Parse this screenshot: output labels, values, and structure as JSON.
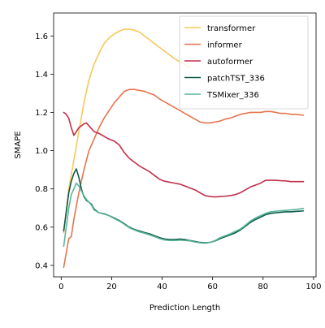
{
  "chart_data": {
    "type": "line",
    "title": "",
    "xlabel": "Prediction Length",
    "ylabel": "SMAPE",
    "xlim": [
      -3,
      101
    ],
    "ylim": [
      0.34,
      1.72
    ],
    "xticks": [
      0,
      20,
      40,
      60,
      80,
      100
    ],
    "yticks": [
      0.4,
      0.6,
      0.8,
      1.0,
      1.2,
      1.4,
      1.6
    ],
    "ytick_format": "fixed1",
    "grid": false,
    "legend_position": "top-right",
    "series": [
      {
        "name": "transformer",
        "color": "#f7c85a",
        "x": [
          1,
          3,
          5,
          7,
          9,
          11,
          13,
          15,
          17,
          19,
          21,
          23,
          25,
          27,
          29,
          31,
          33,
          35,
          37,
          39,
          41,
          43,
          45,
          47,
          49,
          51
        ],
        "y": [
          0.57,
          0.8,
          0.95,
          1.1,
          1.25,
          1.37,
          1.45,
          1.51,
          1.56,
          1.59,
          1.61,
          1.625,
          1.635,
          1.635,
          1.63,
          1.62,
          1.6,
          1.58,
          1.56,
          1.54,
          1.52,
          1.5,
          1.48,
          1.465,
          1.45,
          1.435
        ]
      },
      {
        "name": "informer",
        "color": "#e8734f",
        "x": [
          1,
          3,
          4,
          5,
          7,
          9,
          11,
          13,
          15,
          17,
          19,
          21,
          23,
          25,
          27,
          29,
          31,
          33,
          35,
          37,
          39,
          41,
          43,
          45,
          47,
          49,
          51,
          53,
          55,
          57,
          59,
          61,
          63,
          65,
          67,
          69,
          71,
          73,
          75,
          77,
          79,
          81,
          83,
          85,
          87,
          89,
          91,
          93,
          96
        ],
        "y": [
          0.39,
          0.54,
          0.55,
          0.64,
          0.78,
          0.9,
          1.0,
          1.06,
          1.12,
          1.17,
          1.21,
          1.25,
          1.28,
          1.31,
          1.32,
          1.32,
          1.315,
          1.31,
          1.3,
          1.29,
          1.27,
          1.255,
          1.24,
          1.225,
          1.21,
          1.195,
          1.18,
          1.165,
          1.15,
          1.145,
          1.145,
          1.15,
          1.155,
          1.165,
          1.17,
          1.18,
          1.19,
          1.195,
          1.2,
          1.2,
          1.2,
          1.205,
          1.205,
          1.2,
          1.195,
          1.195,
          1.19,
          1.19,
          1.185
        ]
      },
      {
        "name": "autoformer",
        "color": "#c22f4a",
        "x": [
          1,
          2,
          3,
          4,
          5,
          6,
          7,
          8,
          9,
          10,
          11,
          13,
          15,
          17,
          19,
          21,
          23,
          25,
          27,
          29,
          31,
          33,
          35,
          37,
          39,
          41,
          43,
          45,
          47,
          49,
          51,
          53,
          55,
          57,
          59,
          61,
          63,
          65,
          67,
          69,
          71,
          73,
          75,
          77,
          79,
          81,
          83,
          85,
          87,
          89,
          91,
          93,
          96
        ],
        "y": [
          1.2,
          1.19,
          1.17,
          1.12,
          1.08,
          1.1,
          1.12,
          1.13,
          1.14,
          1.145,
          1.13,
          1.1,
          1.09,
          1.075,
          1.06,
          1.05,
          1.03,
          0.99,
          0.96,
          0.94,
          0.92,
          0.905,
          0.89,
          0.87,
          0.85,
          0.84,
          0.835,
          0.83,
          0.825,
          0.815,
          0.805,
          0.795,
          0.78,
          0.765,
          0.76,
          0.758,
          0.76,
          0.762,
          0.765,
          0.77,
          0.78,
          0.795,
          0.81,
          0.82,
          0.83,
          0.845,
          0.845,
          0.845,
          0.843,
          0.842,
          0.838,
          0.838,
          0.838
        ]
      },
      {
        "name": "patchTST_336",
        "color": "#0f5a4a",
        "x": [
          1,
          2,
          3,
          4,
          5,
          6,
          7,
          8,
          9,
          10,
          11,
          12,
          13,
          15,
          17,
          19,
          21,
          23,
          25,
          27,
          29,
          31,
          33,
          35,
          37,
          39,
          41,
          43,
          45,
          47,
          49,
          51,
          53,
          55,
          57,
          59,
          61,
          63,
          65,
          67,
          69,
          71,
          73,
          75,
          77,
          79,
          81,
          83,
          85,
          87,
          89,
          91,
          93,
          96
        ],
        "y": [
          0.58,
          0.68,
          0.78,
          0.84,
          0.88,
          0.905,
          0.86,
          0.8,
          0.76,
          0.74,
          0.73,
          0.72,
          0.695,
          0.675,
          0.67,
          0.66,
          0.648,
          0.635,
          0.618,
          0.6,
          0.588,
          0.58,
          0.572,
          0.565,
          0.555,
          0.545,
          0.538,
          0.535,
          0.535,
          0.538,
          0.535,
          0.53,
          0.525,
          0.52,
          0.518,
          0.52,
          0.528,
          0.54,
          0.55,
          0.56,
          0.57,
          0.585,
          0.605,
          0.625,
          0.64,
          0.652,
          0.665,
          0.672,
          0.675,
          0.678,
          0.68,
          0.68,
          0.682,
          0.685
        ]
      },
      {
        "name": "TSMixer_336",
        "color": "#5bb59a",
        "x": [
          1,
          2,
          3,
          4,
          5,
          6,
          7,
          8,
          9,
          10,
          11,
          12,
          13,
          15,
          17,
          19,
          21,
          23,
          25,
          27,
          29,
          31,
          33,
          35,
          37,
          39,
          41,
          43,
          45,
          47,
          49,
          51,
          53,
          55,
          57,
          59,
          61,
          63,
          65,
          67,
          69,
          71,
          73,
          75,
          77,
          79,
          81,
          83,
          85,
          87,
          89,
          91,
          93,
          96
        ],
        "y": [
          0.5,
          0.6,
          0.7,
          0.77,
          0.8,
          0.83,
          0.815,
          0.79,
          0.765,
          0.745,
          0.73,
          0.715,
          0.69,
          0.675,
          0.668,
          0.66,
          0.645,
          0.632,
          0.615,
          0.597,
          0.585,
          0.575,
          0.568,
          0.56,
          0.55,
          0.54,
          0.533,
          0.53,
          0.53,
          0.532,
          0.53,
          0.528,
          0.522,
          0.518,
          0.516,
          0.52,
          0.53,
          0.545,
          0.555,
          0.565,
          0.578,
          0.59,
          0.61,
          0.632,
          0.648,
          0.66,
          0.672,
          0.68,
          0.683,
          0.686,
          0.688,
          0.69,
          0.692,
          0.698
        ]
      }
    ]
  }
}
